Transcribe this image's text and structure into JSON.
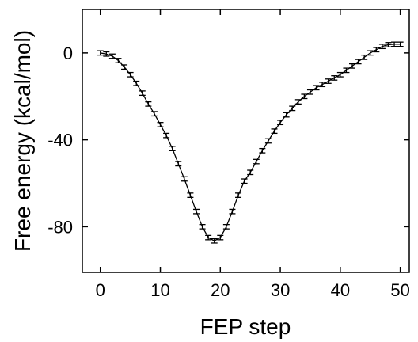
{
  "chart_data": {
    "type": "line",
    "title": "",
    "xlabel": "FEP step",
    "ylabel": "Free energy  (kcal/mol)",
    "xlim": [
      -3,
      51.5
    ],
    "ylim": [
      -101,
      20
    ],
    "x_ticks": [
      "0",
      "10",
      "20",
      "30",
      "40",
      "50"
    ],
    "y_ticks": [
      "0",
      "-40",
      "-80"
    ],
    "grid": false,
    "legend": "none",
    "series": [
      {
        "x": [
          0,
          1,
          2,
          3,
          4,
          5,
          6,
          7,
          8,
          9,
          10,
          11,
          12,
          13,
          14,
          15,
          16,
          17,
          18,
          19,
          20,
          21,
          22,
          23,
          24,
          25,
          26,
          27,
          28,
          29,
          30,
          31,
          32,
          33,
          34,
          35,
          36,
          37,
          38,
          39,
          40,
          41,
          42,
          43,
          44,
          45,
          46,
          47,
          48,
          49,
          50
        ],
        "y": [
          0,
          -0.5,
          -1.5,
          -3.5,
          -6.5,
          -10,
          -14,
          -18.5,
          -23.5,
          -28,
          -33,
          -38,
          -44,
          -51,
          -58,
          -65.5,
          -73,
          -80,
          -85,
          -86.5,
          -85,
          -80,
          -73,
          -65.5,
          -59,
          -55,
          -50,
          -45,
          -40.5,
          -36,
          -32,
          -28.5,
          -25.5,
          -22.5,
          -20,
          -18,
          -16,
          -14.5,
          -13,
          -11.5,
          -10,
          -8,
          -6,
          -4,
          -2,
          0,
          1.5,
          3,
          3.8,
          4,
          4
        ],
        "error": 1.0,
        "color": "#000000"
      }
    ]
  }
}
